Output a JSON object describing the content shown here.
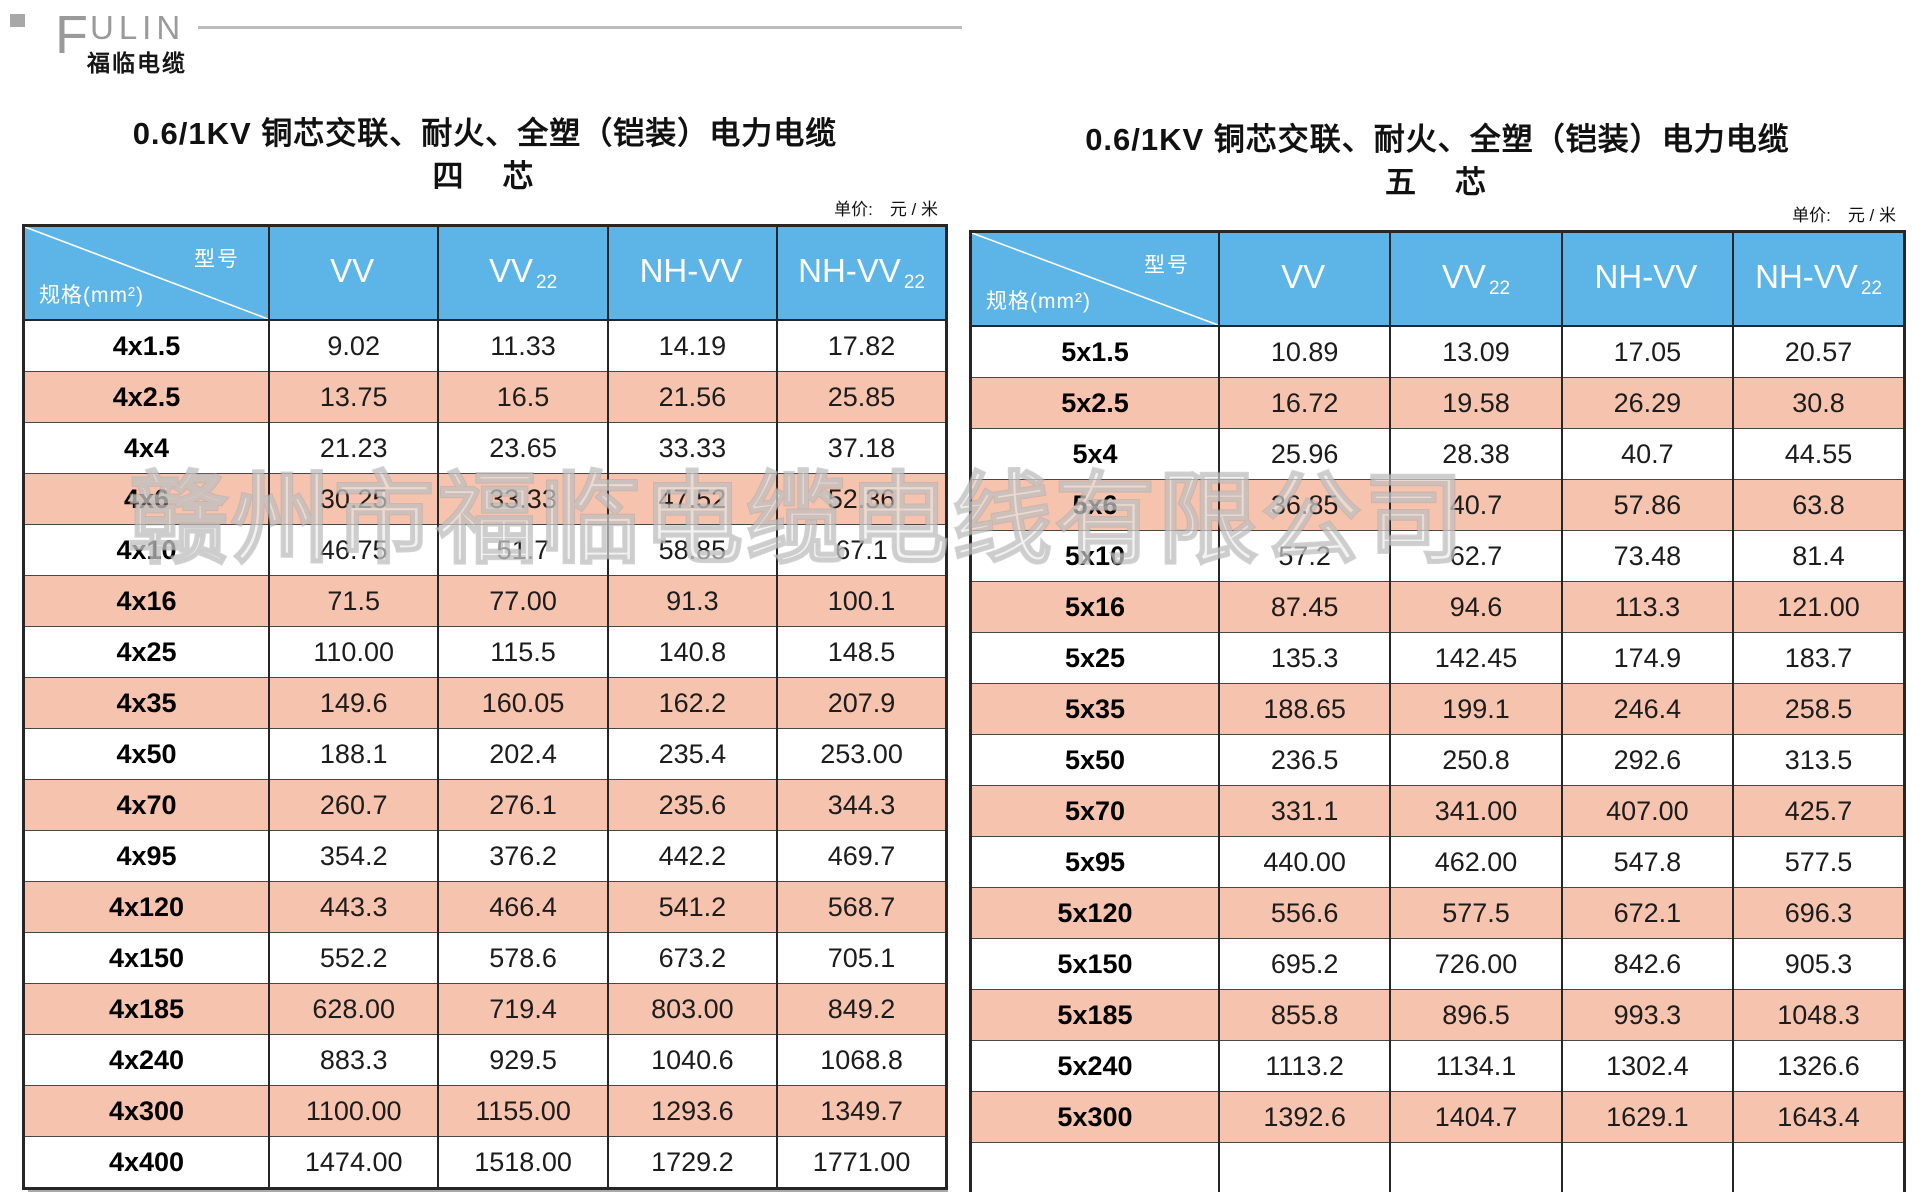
{
  "page": {
    "logo": {
      "brand_initial": "F",
      "brand_rest": "ULIN",
      "brand_cn": "福临电缆"
    },
    "watermark": "赣州市福临电缆电线有限公司",
    "colors": {
      "header_blue": "#5cb5e6",
      "row_pink": "#f6c3ae",
      "border_dark": "#262626",
      "logo_gray": "#9a9a9a",
      "watermark_gray": "#a5a5a5"
    }
  },
  "tables": [
    {
      "title": "0.6/1KV 铜芯交联、耐火、全塑（铠装）电力电缆",
      "core_label": "四　芯",
      "unit_note": "单价:　元 / 米",
      "corner_top_label": "型号",
      "corner_bottom_label": "规格(mm²)",
      "columns": [
        {
          "base": "VV",
          "sub": ""
        },
        {
          "base": "VV",
          "sub": "22"
        },
        {
          "base": "NH-VV",
          "sub": ""
        },
        {
          "base": "NH-VV",
          "sub": "22"
        }
      ],
      "rows": [
        {
          "spec": "4x1.5",
          "values": [
            "9.02",
            "11.33",
            "14.19",
            "17.82"
          ]
        },
        {
          "spec": "4x2.5",
          "values": [
            "13.75",
            "16.5",
            "21.56",
            "25.85"
          ]
        },
        {
          "spec": "4x4",
          "values": [
            "21.23",
            "23.65",
            "33.33",
            "37.18"
          ]
        },
        {
          "spec": "4x6",
          "values": [
            "30.25",
            "33.33",
            "47.52",
            "52.36"
          ]
        },
        {
          "spec": "4x10",
          "values": [
            "46.75",
            "51.7",
            "58.85",
            "67.1"
          ]
        },
        {
          "spec": "4x16",
          "values": [
            "71.5",
            "77.00",
            "91.3",
            "100.1"
          ]
        },
        {
          "spec": "4x25",
          "values": [
            "110.00",
            "115.5",
            "140.8",
            "148.5"
          ]
        },
        {
          "spec": "4x35",
          "values": [
            "149.6",
            "160.05",
            "162.2",
            "207.9"
          ]
        },
        {
          "spec": "4x50",
          "values": [
            "188.1",
            "202.4",
            "235.4",
            "253.00"
          ]
        },
        {
          "spec": "4x70",
          "values": [
            "260.7",
            "276.1",
            "235.6",
            "344.3"
          ]
        },
        {
          "spec": "4x95",
          "values": [
            "354.2",
            "376.2",
            "442.2",
            "469.7"
          ]
        },
        {
          "spec": "4x120",
          "values": [
            "443.3",
            "466.4",
            "541.2",
            "568.7"
          ]
        },
        {
          "spec": "4x150",
          "values": [
            "552.2",
            "578.6",
            "673.2",
            "705.1"
          ]
        },
        {
          "spec": "4x185",
          "values": [
            "628.00",
            "719.4",
            "803.00",
            "849.2"
          ]
        },
        {
          "spec": "4x240",
          "values": [
            "883.3",
            "929.5",
            "1040.6",
            "1068.8"
          ]
        },
        {
          "spec": "4x300",
          "values": [
            "1100.00",
            "1155.00",
            "1293.6",
            "1349.7"
          ]
        },
        {
          "spec": "4x400",
          "values": [
            "1474.00",
            "1518.00",
            "1729.2",
            "1771.00"
          ]
        }
      ]
    },
    {
      "title": "0.6/1KV 铜芯交联、耐火、全塑（铠装）电力电缆",
      "core_label": "五　芯",
      "unit_note": "单价:　元 / 米",
      "corner_top_label": "型号",
      "corner_bottom_label": "规格(mm²)",
      "columns": [
        {
          "base": "VV",
          "sub": ""
        },
        {
          "base": "VV",
          "sub": "22"
        },
        {
          "base": "NH-VV",
          "sub": ""
        },
        {
          "base": "NH-VV",
          "sub": "22"
        }
      ],
      "rows": [
        {
          "spec": "5x1.5",
          "values": [
            "10.89",
            "13.09",
            "17.05",
            "20.57"
          ]
        },
        {
          "spec": "5x2.5",
          "values": [
            "16.72",
            "19.58",
            "26.29",
            "30.8"
          ]
        },
        {
          "spec": "5x4",
          "values": [
            "25.96",
            "28.38",
            "40.7",
            "44.55"
          ]
        },
        {
          "spec": "5x6",
          "values": [
            "36.85",
            "40.7",
            "57.86",
            "63.8"
          ]
        },
        {
          "spec": "5x10",
          "values": [
            "57.2",
            "62.7",
            "73.48",
            "81.4"
          ]
        },
        {
          "spec": "5x16",
          "values": [
            "87.45",
            "94.6",
            "113.3",
            "121.00"
          ]
        },
        {
          "spec": "5x25",
          "values": [
            "135.3",
            "142.45",
            "174.9",
            "183.7"
          ]
        },
        {
          "spec": "5x35",
          "values": [
            "188.65",
            "199.1",
            "246.4",
            "258.5"
          ]
        },
        {
          "spec": "5x50",
          "values": [
            "236.5",
            "250.8",
            "292.6",
            "313.5"
          ]
        },
        {
          "spec": "5x70",
          "values": [
            "331.1",
            "341.00",
            "407.00",
            "425.7"
          ]
        },
        {
          "spec": "5x95",
          "values": [
            "440.00",
            "462.00",
            "547.8",
            "577.5"
          ]
        },
        {
          "spec": "5x120",
          "values": [
            "556.6",
            "577.5",
            "672.1",
            "696.3"
          ]
        },
        {
          "spec": "5x150",
          "values": [
            "695.2",
            "726.00",
            "842.6",
            "905.3"
          ]
        },
        {
          "spec": "5x185",
          "values": [
            "855.8",
            "896.5",
            "993.3",
            "1048.3"
          ]
        },
        {
          "spec": "5x240",
          "values": [
            "1113.2",
            "1134.1",
            "1302.4",
            "1326.6"
          ]
        },
        {
          "spec": "5x300",
          "values": [
            "1392.6",
            "1404.7",
            "1629.1",
            "1643.4"
          ]
        },
        {
          "spec": "",
          "values": [
            "",
            "",
            "",
            ""
          ]
        }
      ]
    }
  ]
}
